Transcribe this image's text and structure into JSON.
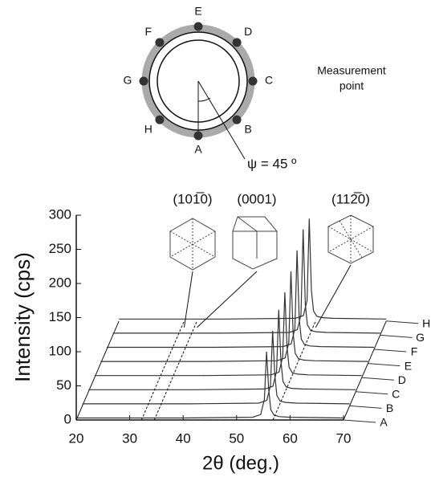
{
  "diagram": {
    "points": [
      "A",
      "B",
      "C",
      "D",
      "E",
      "F",
      "G",
      "H"
    ],
    "caption_line1": "Measurement",
    "caption_line2": "point",
    "angle": "ψ = 45 º"
  },
  "chart_data": {
    "type": "waterfall",
    "x_label": "2θ (deg.)",
    "y_label": "Intensity (cps)",
    "x": [
      20,
      40,
      53,
      54.5,
      55.2,
      55.6,
      56.0,
      56.4,
      57.0,
      58,
      60,
      70
    ],
    "series": [
      {
        "name": "A",
        "color": "#333333",
        "values": [
          3,
          3,
          4,
          8,
          30,
          100,
          45,
          15,
          7,
          5,
          4,
          3
        ]
      },
      {
        "name": "B",
        "color": "#333333",
        "values": [
          3,
          3,
          4,
          8,
          30,
          110,
          45,
          15,
          7,
          5,
          4,
          3
        ]
      },
      {
        "name": "C",
        "color": "#333333",
        "values": [
          3,
          3,
          4,
          8,
          30,
          120,
          45,
          15,
          7,
          5,
          4,
          3
        ]
      },
      {
        "name": "D",
        "color": "#333333",
        "values": [
          3,
          3,
          4,
          8,
          30,
          125,
          45,
          15,
          7,
          5,
          4,
          3
        ]
      },
      {
        "name": "E",
        "color": "#333333",
        "values": [
          3,
          3,
          4,
          8,
          30,
          135,
          45,
          15,
          7,
          5,
          4,
          3
        ]
      },
      {
        "name": "F",
        "color": "#333333",
        "values": [
          3,
          3,
          4,
          8,
          30,
          145,
          45,
          15,
          7,
          5,
          4,
          3
        ]
      },
      {
        "name": "G",
        "color": "#333333",
        "values": [
          3,
          3,
          4,
          8,
          30,
          155,
          45,
          15,
          7,
          5,
          4,
          3
        ]
      },
      {
        "name": "H",
        "color": "#333333",
        "values": [
          3,
          3,
          4,
          8,
          30,
          150,
          45,
          15,
          7,
          5,
          4,
          3
        ]
      }
    ],
    "annotations": [
      {
        "label": "(101̅0)",
        "x": 32.2
      },
      {
        "label": "(0001)",
        "x": 34.6
      },
      {
        "label": "(112̅0)",
        "x": 56.8
      }
    ],
    "xlim": [
      20,
      70
    ],
    "xticks": [
      20,
      30,
      40,
      50,
      60,
      70
    ],
    "ylim": [
      0,
      300
    ],
    "yticks": [
      0,
      50,
      100,
      150,
      200,
      250,
      300
    ]
  }
}
